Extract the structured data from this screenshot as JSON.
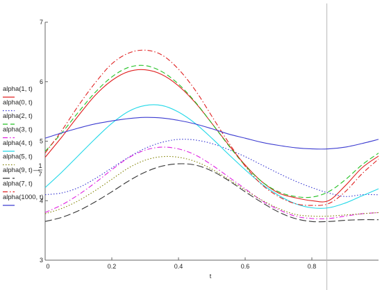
{
  "chart_data": {
    "type": "line",
    "title": "",
    "xlabel": "t",
    "ylabel": "",
    "xlim": [
      0,
      1
    ],
    "ylim": [
      3,
      7
    ],
    "x_ticks": [
      "0",
      "0.2",
      "0.4",
      "0.6",
      "0.8"
    ],
    "x_tick_values": [
      0,
      0.2,
      0.4,
      0.6,
      0.8
    ],
    "y_ticks": [
      "3",
      "4",
      "5",
      "6",
      "7"
    ],
    "y_tick_values": [
      3,
      4,
      5,
      6,
      7
    ],
    "grid": false,
    "legend_position": "left",
    "marker_x": 0.845,
    "x": [
      0,
      0.05,
      0.1,
      0.15,
      0.2,
      0.25,
      0.3,
      0.35,
      0.4,
      0.45,
      0.5,
      0.55,
      0.6,
      0.65,
      0.7,
      0.75,
      0.8,
      0.85,
      0.9,
      0.95,
      1.0
    ],
    "series": [
      {
        "name": "alpha(1, t)",
        "color": "#e02020",
        "dash": "solid",
        "values": [
          4.73,
          5.07,
          5.43,
          5.77,
          6.02,
          6.17,
          6.2,
          6.12,
          5.93,
          5.65,
          5.3,
          4.94,
          4.6,
          4.32,
          4.13,
          4.05,
          4.0,
          4.0,
          4.25,
          4.55,
          4.75
        ]
      },
      {
        "name": "alpha(0, t)",
        "color": "#3030d0",
        "dash": "dot",
        "values": [
          4.1,
          4.13,
          4.22,
          4.37,
          4.55,
          4.73,
          4.88,
          4.98,
          5.03,
          5.02,
          4.96,
          4.86,
          4.74,
          4.6,
          4.46,
          4.33,
          4.22,
          4.13,
          4.07,
          4.1,
          4.1
        ]
      },
      {
        "name": "alpha(2, t)",
        "color": "#20c020",
        "dash": "dash",
        "values": [
          4.83,
          5.14,
          5.49,
          5.82,
          6.08,
          6.24,
          6.27,
          6.17,
          5.96,
          5.66,
          5.3,
          4.93,
          4.59,
          4.32,
          4.15,
          4.07,
          4.06,
          4.15,
          4.35,
          4.6,
          4.8
        ]
      },
      {
        "name": "alpha(3, t)",
        "color": "#e020e0",
        "dash": "dashdot",
        "values": [
          3.8,
          3.93,
          4.1,
          4.3,
          4.52,
          4.72,
          4.85,
          4.9,
          4.87,
          4.77,
          4.6,
          4.4,
          4.2,
          4.0,
          3.85,
          3.74,
          3.7,
          3.7,
          3.74,
          3.78,
          3.8
        ]
      },
      {
        "name": "alpha(4, t)",
        "color": "#20d8e8",
        "dash": "solid",
        "values": [
          4.22,
          4.48,
          4.76,
          5.04,
          5.3,
          5.5,
          5.6,
          5.6,
          5.49,
          5.3,
          5.05,
          4.78,
          4.52,
          4.28,
          4.09,
          3.95,
          3.88,
          3.88,
          3.96,
          4.08,
          4.2
        ]
      },
      {
        "name": "alpha(5, t)",
        "color": "#808000",
        "dash": "dot",
        "values": [
          3.78,
          3.87,
          4.0,
          4.17,
          4.36,
          4.55,
          4.68,
          4.74,
          4.73,
          4.66,
          4.53,
          4.36,
          4.18,
          4.01,
          3.87,
          3.77,
          3.74,
          3.74,
          3.76,
          3.78,
          3.8
        ]
      },
      {
        "name": "alpha(9, t)",
        "color": "#333333",
        "dash": "longdash",
        "values": [
          3.65,
          3.72,
          3.83,
          3.98,
          4.15,
          4.33,
          4.48,
          4.58,
          4.62,
          4.6,
          4.5,
          4.34,
          4.15,
          3.97,
          3.81,
          3.7,
          3.65,
          3.65,
          3.67,
          3.68,
          3.68
        ]
      },
      {
        "name": "alpha(7, t)",
        "color": "#e02020",
        "dash": "dashdot",
        "values": [
          4.8,
          5.18,
          5.6,
          5.98,
          6.3,
          6.48,
          6.53,
          6.45,
          6.21,
          5.86,
          5.42,
          4.98,
          4.58,
          4.27,
          4.07,
          3.95,
          3.92,
          3.95,
          4.15,
          4.45,
          4.7
        ]
      },
      {
        "name": "alpha(1000, t)",
        "color": "#3a3ad0",
        "dash": "solid",
        "values": [
          5.05,
          5.14,
          5.22,
          5.29,
          5.34,
          5.38,
          5.4,
          5.39,
          5.35,
          5.29,
          5.21,
          5.12,
          5.05,
          4.98,
          4.93,
          4.89,
          4.87,
          4.87,
          4.9,
          4.96,
          5.03
        ]
      }
    ],
    "legend_entries": [
      {
        "label": "alpha(1, t)",
        "series": 0
      },
      {
        "label": "alpha(0, t)",
        "series": 1
      },
      {
        "label": "alpha(2, t)",
        "series": 2
      },
      {
        "label": "alpha(3, t)",
        "series": 3
      },
      {
        "label": "alpha(4, t)",
        "series": 4
      },
      {
        "label": "alpha(5, t)",
        "series": 5
      },
      {
        "label": "alpha(9, t)",
        "series": 6,
        "suffix": "—",
        "frac_num": "1",
        "frac_den": "7"
      },
      {
        "label": "alpha(7, t)",
        "series": 7
      },
      {
        "label": "alpha(1000, t)",
        "series": 8
      }
    ]
  }
}
